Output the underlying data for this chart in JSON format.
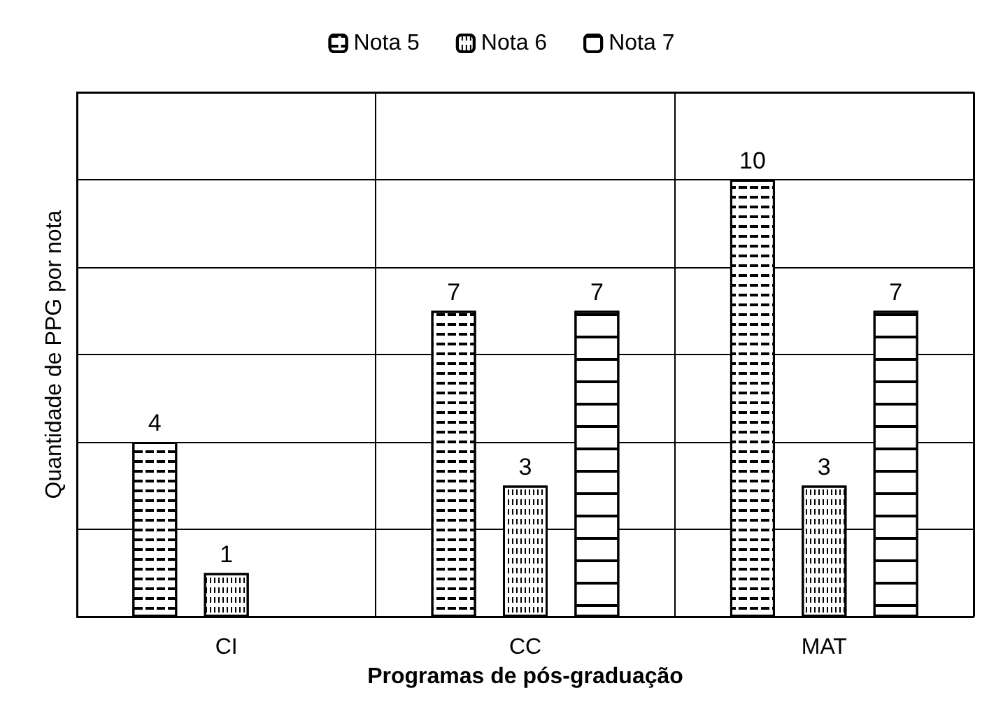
{
  "chart_data": {
    "type": "bar",
    "xlabel": "Programas de pós-graduação",
    "ylabel": "Quantidade de PPG por nota",
    "categories": [
      "CI",
      "CC",
      "MAT"
    ],
    "series": [
      {
        "name": "Nota 5",
        "color": "#ffffff",
        "values": [
          4,
          7,
          10
        ]
      },
      {
        "name": "Nota 6",
        "color": "#ffffff",
        "values": [
          1,
          3,
          3
        ]
      },
      {
        "name": "Nota 7",
        "color": "#ffffff",
        "values": [
          null,
          7,
          7
        ]
      }
    ],
    "ylim": [
      0,
      12
    ],
    "yticks": [
      0,
      2,
      4,
      6,
      8,
      10,
      12
    ],
    "tick_labels": "x",
    "grid": true,
    "legend": "top",
    "data_labels": true
  }
}
